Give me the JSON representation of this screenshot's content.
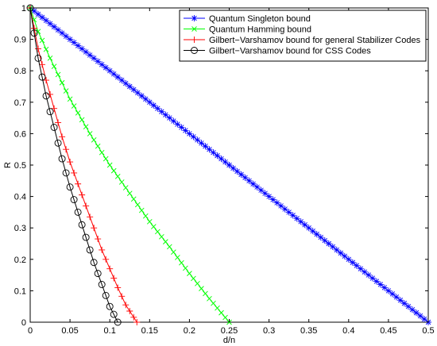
{
  "chart_data": {
    "type": "line",
    "xlabel": "d/n",
    "ylabel": "R",
    "xlim": [
      0,
      0.5
    ],
    "ylim": [
      0,
      1
    ],
    "grid": false,
    "legend_position": "top-right",
    "x_ticks": [
      "0",
      "0.05",
      "0.1",
      "0.15",
      "0.2",
      "0.25",
      "0.3",
      "0.35",
      "0.4",
      "0.45",
      "0.5"
    ],
    "y_ticks": [
      "0",
      "0.1",
      "0.2",
      "0.3",
      "0.4",
      "0.5",
      "0.6",
      "0.7",
      "0.8",
      "0.9",
      "1"
    ],
    "series": [
      {
        "name": "Quantum Singleton bound",
        "color": "#0000ff",
        "marker": "asterisk",
        "x": [
          0,
          0.05,
          0.1,
          0.15,
          0.2,
          0.25,
          0.3,
          0.35,
          0.4,
          0.45,
          0.5
        ],
        "y": [
          1,
          0.9,
          0.8,
          0.7,
          0.6,
          0.5,
          0.4,
          0.3,
          0.2,
          0.1,
          0
        ]
      },
      {
        "name": "Quantum Hamming bound",
        "color": "#00ff00",
        "marker": "x",
        "x": [
          0,
          0.01,
          0.025,
          0.05,
          0.075,
          0.1,
          0.125,
          0.15,
          0.175,
          0.2,
          0.225,
          0.25
        ],
        "y": [
          1,
          0.925,
          0.84,
          0.71,
          0.6,
          0.5,
          0.41,
          0.32,
          0.24,
          0.155,
          0.075,
          0
        ]
      },
      {
        "name": "Gilbert−Varshamov bound for general Stabilizer Codes",
        "color": "#ff0000",
        "marker": "plus",
        "x": [
          0,
          0.01,
          0.02,
          0.03,
          0.04,
          0.05,
          0.06,
          0.07,
          0.08,
          0.09,
          0.1,
          0.11,
          0.12,
          0.134
        ],
        "y": [
          1,
          0.87,
          0.77,
          0.68,
          0.59,
          0.51,
          0.44,
          0.37,
          0.3,
          0.23,
          0.17,
          0.11,
          0.055,
          0
        ]
      },
      {
        "name": "Gilbert−Varshamov bound for CSS Codes",
        "color": "#000000",
        "marker": "circle",
        "x": [
          0,
          0.005,
          0.01,
          0.02,
          0.03,
          0.04,
          0.05,
          0.06,
          0.07,
          0.08,
          0.09,
          0.1,
          0.11
        ],
        "y": [
          1,
          0.92,
          0.84,
          0.72,
          0.62,
          0.52,
          0.43,
          0.35,
          0.27,
          0.19,
          0.12,
          0.05,
          0
        ]
      }
    ]
  }
}
